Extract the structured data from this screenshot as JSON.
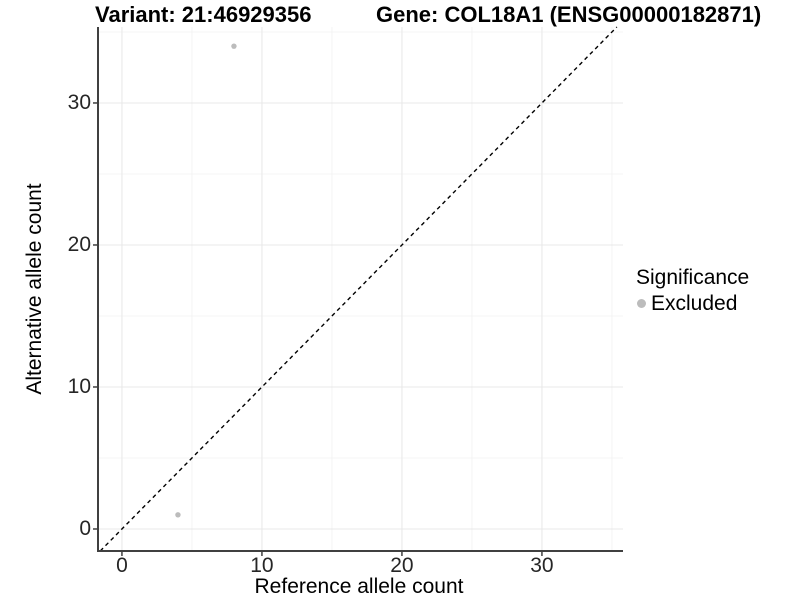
{
  "header": {
    "variant_title": "Variant: 21:46929356",
    "gene_title": "Gene: COL18A1 (ENSG00000182871)"
  },
  "chart_data": {
    "type": "scatter",
    "xlabel": "Reference allele count",
    "ylabel": "Alternative allele count",
    "x_major_ticks": [
      0,
      10,
      20,
      30
    ],
    "y_major_ticks": [
      0,
      10,
      20,
      30
    ],
    "x_minor_gridlines": [
      5,
      15,
      25,
      35
    ],
    "y_minor_gridlines": [
      5,
      15,
      25,
      35
    ],
    "xlim": [
      -1.71,
      35.79
    ],
    "ylim": [
      -1.55,
      35.35
    ],
    "grid": true,
    "identity_line": {
      "style": "dashed",
      "equation": "y = x",
      "color": "#000000"
    },
    "points": [
      {
        "x": 8,
        "y": 34,
        "significance": "Excluded"
      },
      {
        "x": 4,
        "y": 1,
        "significance": "Excluded"
      }
    ],
    "point_color": "#bcbcbc",
    "legend": {
      "title": "Significance",
      "position": "right",
      "items": [
        {
          "label": "Excluded",
          "color": "#bcbcbc"
        }
      ]
    }
  },
  "colors": {
    "background": "#ffffff",
    "axis_line": "#404040",
    "major_grid": "#e8e8e8",
    "minor_grid": "#f4f4f4",
    "tick_label": "#262626",
    "dashed_line": "#000000"
  }
}
